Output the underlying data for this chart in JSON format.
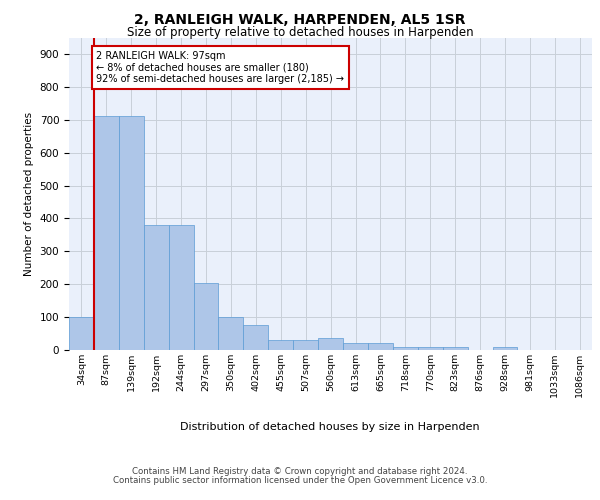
{
  "title": "2, RANLEIGH WALK, HARPENDEN, AL5 1SR",
  "subtitle": "Size of property relative to detached houses in Harpenden",
  "xlabel": "Distribution of detached houses by size in Harpenden",
  "ylabel": "Number of detached properties",
  "bar_labels": [
    "34sqm",
    "87sqm",
    "139sqm",
    "192sqm",
    "244sqm",
    "297sqm",
    "350sqm",
    "402sqm",
    "455sqm",
    "507sqm",
    "560sqm",
    "613sqm",
    "665sqm",
    "718sqm",
    "770sqm",
    "823sqm",
    "876sqm",
    "928sqm",
    "981sqm",
    "1033sqm",
    "1086sqm"
  ],
  "bar_values": [
    100,
    710,
    710,
    380,
    380,
    205,
    100,
    75,
    30,
    30,
    35,
    20,
    20,
    10,
    10,
    10,
    0,
    10,
    0,
    0,
    0
  ],
  "bar_color": "#aec6e8",
  "bar_edge_color": "#5b9bd5",
  "annotation_title": "2 RANLEIGH WALK: 97sqm",
  "annotation_line1": "← 8% of detached houses are smaller (180)",
  "annotation_line2": "92% of semi-detached houses are larger (2,185) →",
  "annotation_box_color": "#ffffff",
  "annotation_box_edge_color": "#cc0000",
  "vline_color": "#cc0000",
  "ylim": [
    0,
    950
  ],
  "yticks": [
    0,
    100,
    200,
    300,
    400,
    500,
    600,
    700,
    800,
    900
  ],
  "footer1": "Contains HM Land Registry data © Crown copyright and database right 2024.",
  "footer2": "Contains public sector information licensed under the Open Government Licence v3.0.",
  "plot_bg_color": "#eaf0fb"
}
